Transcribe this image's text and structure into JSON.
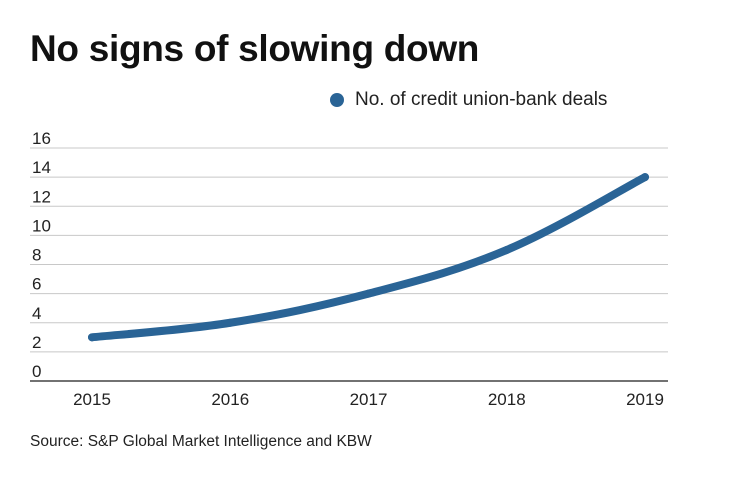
{
  "title": "No signs of slowing down",
  "source": "Source: S&P Global Market Intelligence and KBW",
  "colors": {
    "series": "#2a6496",
    "grid": "#c8c8c8",
    "axis": "#444444",
    "text": "#111111"
  },
  "chart_data": {
    "type": "line",
    "title": "No signs of slowing down",
    "xlabel": "",
    "ylabel": "",
    "x": [
      "2015",
      "2016",
      "2017",
      "2018",
      "2019"
    ],
    "series": [
      {
        "name": "No. of credit union-bank deals",
        "values": [
          3,
          4,
          6,
          9,
          14
        ]
      }
    ],
    "ylim": [
      0,
      16
    ],
    "yticks": [
      0,
      2,
      4,
      6,
      8,
      10,
      12,
      14,
      16
    ],
    "grid": true,
    "legend": "top-right"
  }
}
